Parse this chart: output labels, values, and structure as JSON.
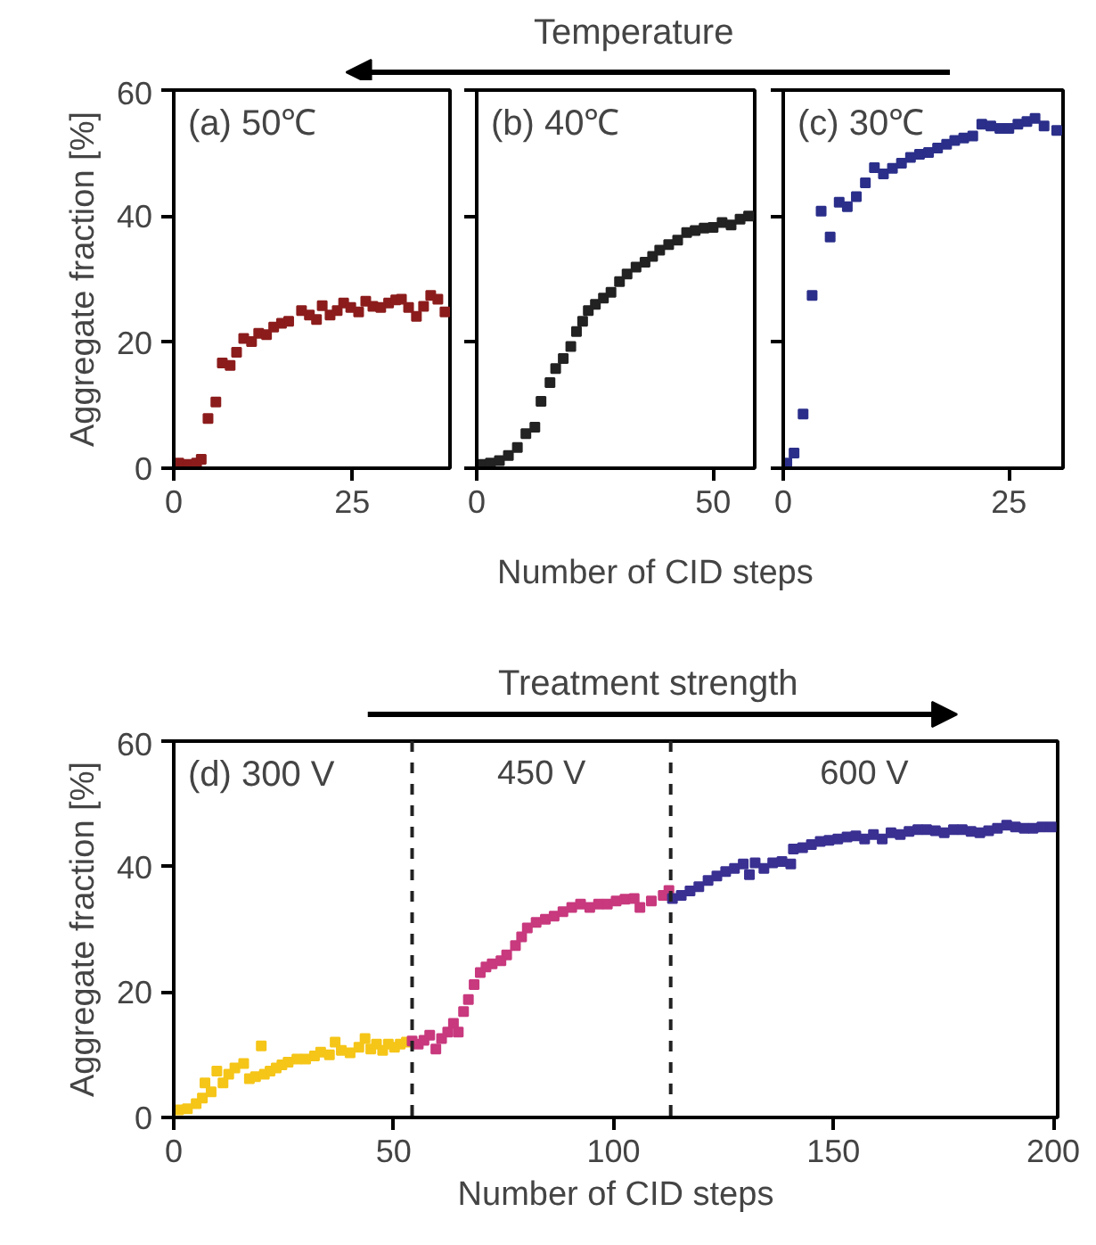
{
  "chart_data": [
    {
      "type": "scatter",
      "title": "(a) 50℃",
      "ylabel": "Aggregate fraction [%]",
      "xlim": [
        0,
        38.7
      ],
      "xticks": [
        0,
        25
      ],
      "ylim": [
        0,
        60
      ],
      "yticks": [
        0,
        20,
        40,
        60
      ],
      "grid": false,
      "marker": "square",
      "series": [
        {
          "color": "#8c1c1c",
          "x": [
            0.7,
            2.0,
            3.2,
            3.85,
            4.8,
            5.9,
            6.8,
            7.9,
            8.8,
            9.8,
            10.9,
            11.9,
            13.0,
            14.0,
            15.1,
            16.1,
            17.9,
            19.0,
            20.0,
            20.8,
            21.9,
            22.9,
            23.8,
            24.8,
            25.9,
            26.9,
            27.9,
            29.0,
            30.1,
            31.1,
            31.9,
            32.9,
            34.0,
            35.0,
            36.0,
            37.0,
            38.0
          ],
          "values": [
            0.8,
            0.6,
            0.8,
            1.4,
            7.9,
            10.5,
            16.7,
            16.3,
            18.4,
            20.6,
            20.1,
            21.4,
            21.2,
            22.4,
            23.0,
            23.3,
            25.0,
            24.3,
            23.6,
            25.8,
            24.3,
            25.0,
            26.2,
            25.5,
            24.8,
            26.5,
            25.7,
            25.5,
            26.2,
            26.7,
            26.8,
            25.5,
            24.1,
            25.7,
            27.4,
            26.8,
            24.8
          ]
        }
      ]
    },
    {
      "type": "scatter",
      "title": "(b) 40℃",
      "xlabel": "Number of CID steps",
      "annotations": [
        "Temperature"
      ],
      "xlim": [
        0,
        58.8
      ],
      "xticks": [
        0,
        50
      ],
      "ylim": [
        0,
        60
      ],
      "yticks": [
        0,
        20,
        40,
        60
      ],
      "tick_labels": "x",
      "grid": false,
      "marker": "square",
      "series": [
        {
          "color": "#222222",
          "x": [
            0.9,
            2.9,
            4.8,
            6.7,
            8.6,
            10.4,
            12.3,
            13.6,
            15.5,
            16.7,
            18.3,
            19.9,
            21.1,
            22.4,
            23.6,
            25.1,
            26.8,
            28.4,
            30.2,
            31.8,
            33.7,
            35.6,
            37.2,
            38.7,
            40.6,
            42.5,
            44.4,
            46.2,
            48.1,
            50.0,
            51.9,
            53.8,
            55.7,
            57.5
          ],
          "values": [
            0.6,
            0.8,
            1.2,
            2.0,
            3.3,
            5.5,
            6.5,
            10.6,
            13.6,
            15.8,
            17.4,
            19.3,
            21.7,
            23.3,
            25.0,
            26.0,
            27.0,
            27.9,
            29.6,
            30.8,
            31.9,
            32.7,
            33.6,
            34.6,
            35.5,
            36.2,
            37.4,
            37.7,
            38.1,
            38.2,
            39.0,
            38.6,
            39.5,
            40.0
          ]
        }
      ]
    },
    {
      "type": "scatter",
      "title": "(c) 30℃",
      "xlim": [
        0,
        31
      ],
      "xticks": [
        0,
        25
      ],
      "ylim": [
        0,
        60
      ],
      "yticks": [
        0,
        20,
        40,
        60
      ],
      "tick_labels": "x",
      "grid": false,
      "marker": "square",
      "series": [
        {
          "color": "#2b2f8a",
          "x": [
            0.4,
            1.2,
            2.2,
            3.2,
            4.2,
            5.2,
            6.2,
            7.1,
            8.1,
            9.1,
            10.1,
            11.1,
            12.1,
            13.1,
            14.1,
            15.1,
            16.1,
            17.1,
            18.1,
            19.0,
            20.0,
            21.0,
            22.0,
            23.0,
            24.0,
            25.0,
            26.0,
            27.0,
            27.9,
            28.9,
            30.3
          ],
          "values": [
            0.8,
            2.4,
            8.6,
            27.4,
            40.8,
            36.7,
            42.2,
            41.5,
            43.1,
            45.3,
            47.7,
            46.7,
            47.6,
            48.4,
            49.3,
            49.8,
            50.1,
            50.8,
            51.4,
            52.0,
            52.4,
            52.7,
            54.6,
            54.3,
            53.9,
            53.9,
            54.6,
            55.0,
            55.5,
            54.3,
            53.6
          ]
        }
      ]
    },
    {
      "type": "scatter",
      "title": "(d) 300 V",
      "xlabel": "Number of CID steps",
      "ylabel": "Aggregate fraction [%]",
      "annotations": [
        "Treatment strength",
        "450 V",
        "600 V"
      ],
      "xlim": [
        0,
        201
      ],
      "xticks": [
        0,
        50,
        100,
        150,
        200
      ],
      "ylim": [
        0,
        60
      ],
      "yticks": [
        0,
        20,
        40,
        60
      ],
      "grid": false,
      "marker": "square",
      "ref_lines": [
        {
          "axis": "x",
          "value": 54.2,
          "color": "#222222",
          "line_style": "dashed"
        },
        {
          "axis": "x",
          "value": 113,
          "color": "#222222",
          "line_style": "dashed"
        }
      ],
      "series": [
        {
          "color": "#f5c518",
          "x": [
            1.1,
            3.1,
            5.1,
            6.5,
            7.1,
            8.5,
            9.8,
            11.2,
            12.5,
            13.9,
            15.9,
            17.2,
            18.6,
            19.9,
            20.6,
            21.9,
            23.3,
            24.6,
            26.0,
            28.0,
            30.0,
            32.0,
            33.4,
            35.4,
            36.7,
            38.1,
            40.1,
            42.1,
            43.5,
            44.8,
            46.1,
            47.5,
            48.8,
            50.2,
            51.5,
            52.9
          ],
          "values": [
            1.2,
            1.4,
            2.2,
            3.1,
            5.5,
            4.1,
            7.4,
            5.5,
            6.9,
            7.9,
            8.6,
            6.2,
            6.5,
            11.4,
            6.9,
            7.4,
            7.9,
            8.4,
            8.8,
            9.3,
            9.3,
            9.8,
            10.4,
            10.0,
            12.0,
            10.7,
            10.3,
            11.2,
            12.6,
            10.9,
            11.7,
            10.7,
            11.7,
            11.2,
            11.7,
            12.0
          ]
        },
        {
          "color": "#c8397e",
          "x": [
            54.2,
            55.6,
            56.9,
            58.2,
            59.6,
            60.9,
            62.3,
            63.6,
            64.7,
            65.9,
            67.0,
            68.3,
            69.7,
            71.0,
            72.4,
            74.4,
            75.7,
            77.7,
            79.1,
            80.4,
            82.4,
            84.5,
            86.5,
            88.5,
            90.5,
            92.5,
            94.6,
            96.6,
            98.6,
            100.6,
            102.6,
            104.7,
            106.0,
            108.6,
            111.3,
            112.6
          ],
          "values": [
            12.2,
            11.7,
            12.3,
            13.1,
            10.9,
            12.6,
            13.6,
            15.0,
            13.6,
            16.9,
            18.8,
            21.2,
            23.1,
            24.0,
            24.5,
            25.0,
            25.9,
            27.4,
            28.8,
            30.2,
            31.1,
            31.6,
            32.1,
            32.8,
            33.5,
            34.0,
            33.5,
            34.0,
            34.0,
            34.5,
            34.8,
            34.9,
            33.5,
            34.5,
            35.4,
            36.2
          ]
        },
        {
          "color": "#3a3092",
          "x": [
            113.4,
            115.4,
            117.4,
            119.4,
            121.5,
            123.5,
            125.5,
            127.5,
            129.5,
            130.9,
            132.2,
            134.2,
            136.2,
            138.3,
            140.3,
            140.9,
            143.0,
            145.0,
            147.0,
            149.0,
            151.0,
            153.1,
            155.1,
            157.1,
            159.1,
            161.1,
            163.1,
            165.2,
            167.2,
            169.2,
            171.2,
            173.2,
            175.2,
            177.3,
            179.3,
            181.3,
            183.3,
            185.3,
            187.3,
            189.4,
            191.4,
            193.4,
            195.4,
            197.4,
            199.5
          ],
          "values": [
            34.9,
            35.4,
            36.1,
            36.8,
            37.8,
            38.5,
            39.2,
            39.7,
            40.4,
            38.7,
            40.6,
            39.7,
            40.6,
            40.8,
            40.4,
            42.8,
            43.0,
            43.5,
            44.0,
            44.2,
            44.4,
            44.7,
            44.9,
            44.4,
            45.1,
            44.4,
            45.4,
            45.1,
            45.6,
            45.9,
            45.9,
            45.7,
            45.4,
            45.9,
            45.9,
            45.6,
            45.4,
            45.7,
            46.1,
            46.6,
            46.3,
            46.1,
            46.1,
            46.3,
            46.3
          ]
        }
      ]
    }
  ]
}
